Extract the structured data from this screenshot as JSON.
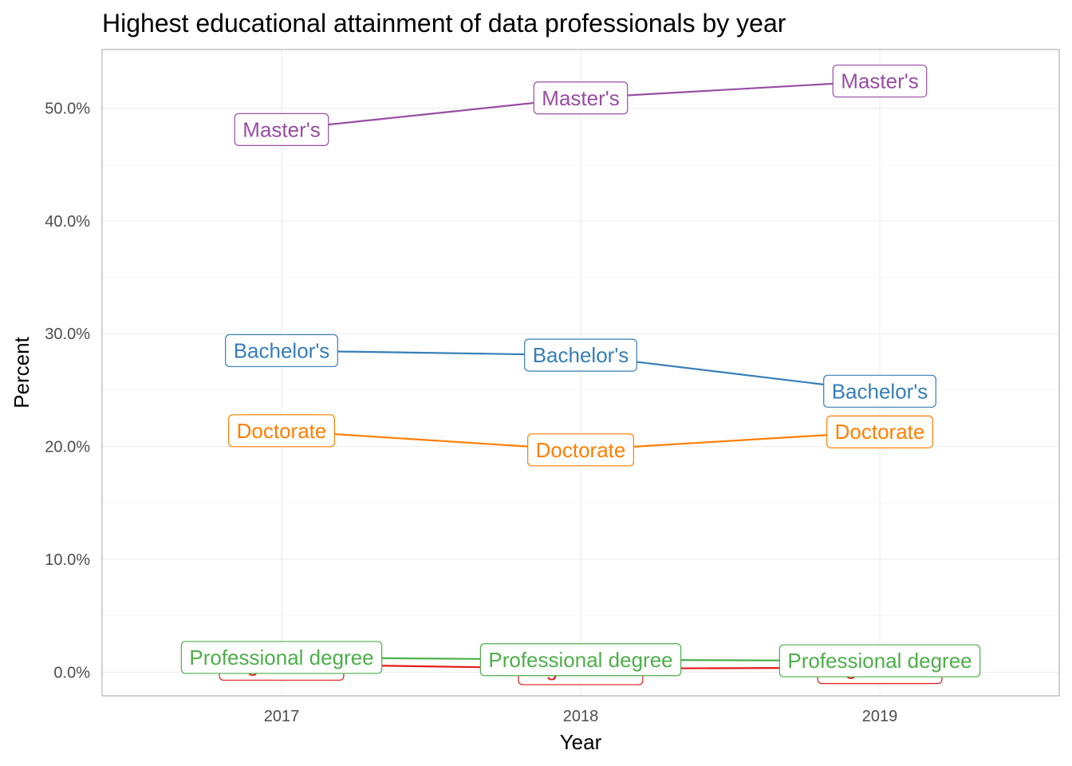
{
  "chart_data": {
    "type": "line",
    "title": "Highest educational attainment of data professionals by year",
    "xlabel": "Year",
    "ylabel": "Percent",
    "categories": [
      "2017",
      "2018",
      "2019"
    ],
    "y_ticks": [
      0,
      10,
      20,
      30,
      40,
      50
    ],
    "y_tick_labels": [
      "0.0%",
      "10.0%",
      "20.0%",
      "30.0%",
      "40.0%",
      "50.0%"
    ],
    "ylim": [
      -2.1,
      55.2
    ],
    "grid": true,
    "legend": "none",
    "series": [
      {
        "name": "High school",
        "color": "#e41a1c",
        "values": [
          0.7,
          0.3,
          0.4
        ]
      },
      {
        "name": "Professional degree",
        "color": "#4daf4a",
        "values": [
          1.3,
          1.1,
          1.0
        ]
      },
      {
        "name": "Doctorate",
        "color": "#ff7f00",
        "values": [
          21.4,
          19.7,
          21.3
        ]
      },
      {
        "name": "Bachelor's",
        "color": "#377eb8",
        "values": [
          28.5,
          28.1,
          24.9
        ]
      },
      {
        "name": "Master's",
        "color": "#984ea3",
        "values": [
          48.1,
          50.9,
          52.4
        ]
      }
    ]
  }
}
